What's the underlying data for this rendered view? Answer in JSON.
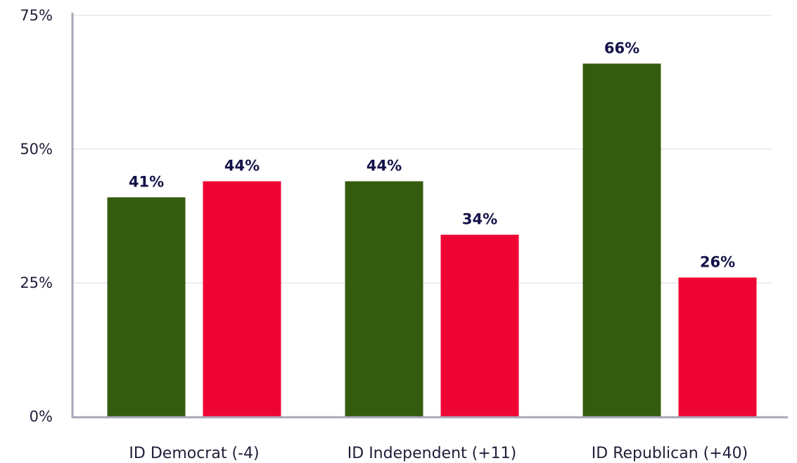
{
  "chart_data": {
    "type": "bar",
    "categories": [
      "ID Democrat (-4)",
      "ID Independent (+11)",
      "ID Republican (+40)"
    ],
    "series": [
      {
        "values": [
          41,
          44,
          66
        ],
        "color": "#345c0e"
      },
      {
        "values": [
          44,
          34,
          26
        ],
        "color": "#ef0533"
      }
    ],
    "data_labels": [
      [
        "41%",
        "44%",
        "66%"
      ],
      [
        "44%",
        "34%",
        "26%"
      ]
    ],
    "yticks": [
      0,
      25,
      50,
      75
    ],
    "ytick_labels": [
      "0%",
      "25%",
      "50%",
      "75%"
    ],
    "ylim": [
      0,
      75
    ],
    "grid": true,
    "legend": "none"
  }
}
